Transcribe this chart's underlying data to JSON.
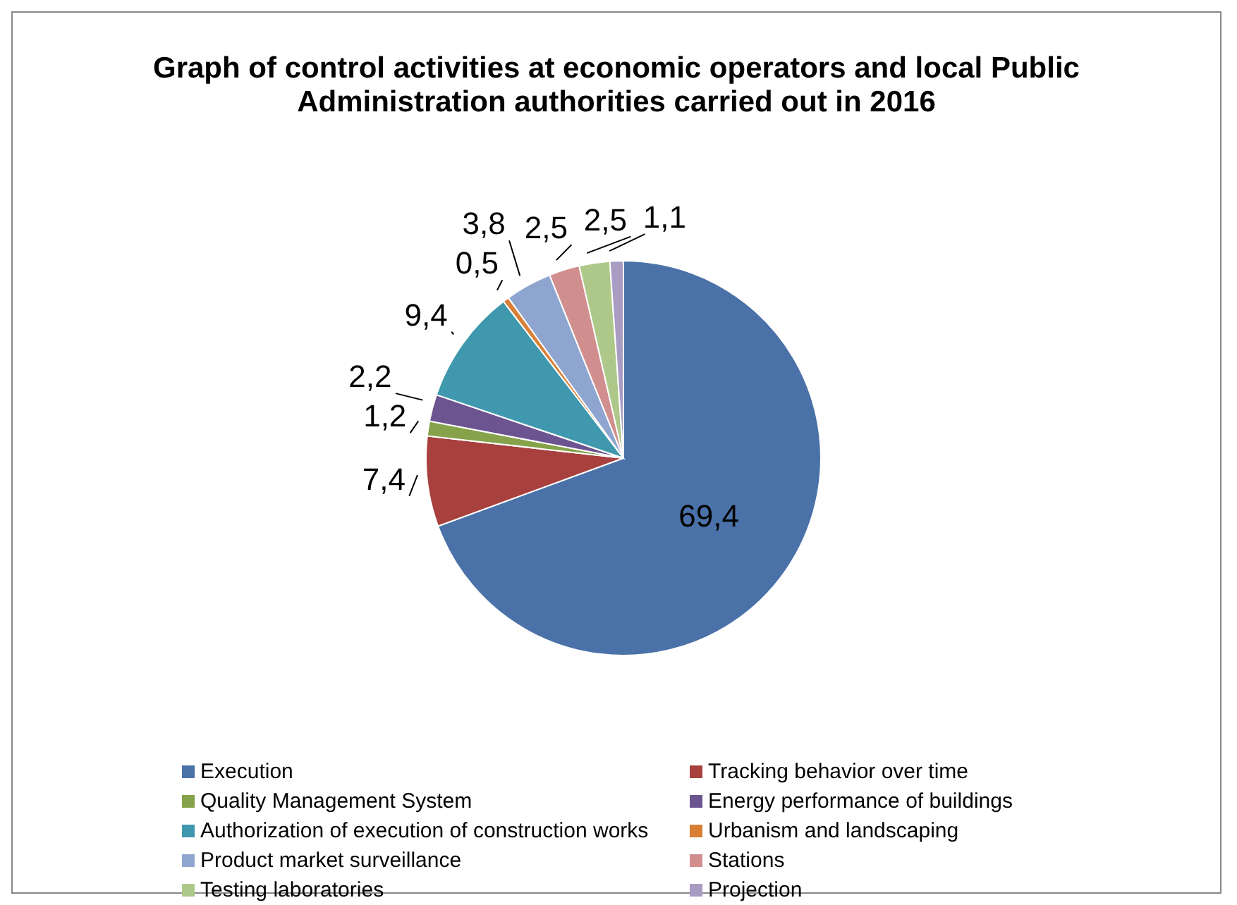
{
  "chart_data": {
    "type": "pie",
    "title": "Graph of control activities at economic operators and local Public Administration authorities carried out in 2016",
    "categories": [
      "Execution",
      "Tracking behavior over time",
      "Quality Management System",
      "Energy performance of buildings",
      "Authorization of execution of construction works",
      "Urbanism and landscaping",
      "Product market surveillance",
      "Stations",
      "Testing laboratories",
      "Projection"
    ],
    "values": [
      69.4,
      7.4,
      1.2,
      2.2,
      9.4,
      0.5,
      3.8,
      2.5,
      2.5,
      1.1
    ],
    "value_labels": [
      "69,4",
      "7,4",
      "1,2",
      "2,2",
      "9,4",
      "0,5",
      "3,8",
      "2,5",
      "2,5",
      "1,1"
    ],
    "colors": [
      "#4a72a8",
      "#a8403e",
      "#86a24a",
      "#6c5490",
      "#3f98ad",
      "#d97f35",
      "#8ea6cf",
      "#d08f8e",
      "#aec88a",
      "#a89cc3"
    ],
    "legend": "bottom"
  }
}
